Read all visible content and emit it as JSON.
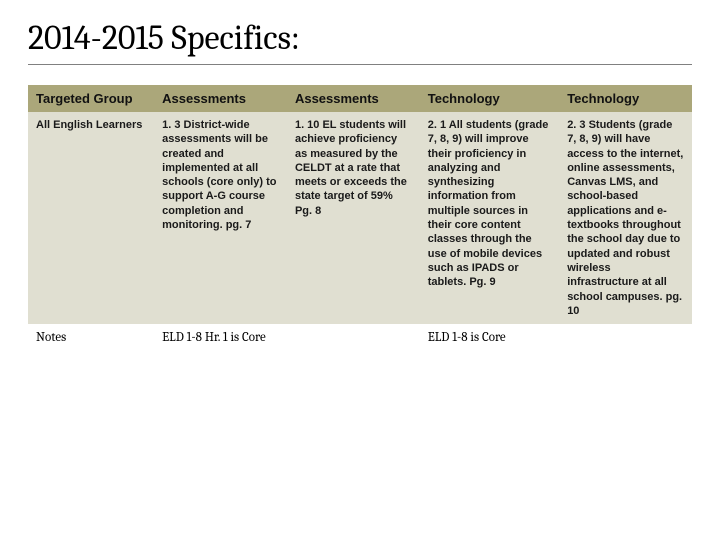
{
  "title": "2014-2015 Specifics:",
  "table": {
    "header_bg": "#aba77a",
    "row_bg_alt": "#e0dfd1",
    "row_bg": "#ffffff",
    "columns": [
      {
        "label": "Targeted Group",
        "width": "19%"
      },
      {
        "label": "Assessments",
        "width": "20%"
      },
      {
        "label": "Assessments",
        "width": "20%"
      },
      {
        "label": "Technology",
        "width": "21%"
      },
      {
        "label": "Technology",
        "width": "20%"
      }
    ],
    "rows": [
      {
        "bg": "#e0dfd1",
        "cells": [
          "All English Learners",
          "1. 3 District-wide assessments will be created and implemented at all schools (core only) to support A-G course completion and monitoring. pg. 7",
          "1. 10 EL students will achieve proficiency as measured by the CELDT at a rate that meets or exceeds the state target of 59% Pg. 8",
          "2. 1 All students (grade 7, 8, 9) will improve their proficiency in analyzing and synthesizing information from multiple sources in their core content classes through the use of mobile devices such as IPADS or tablets. Pg. 9",
          "2. 3 Students (grade 7, 8, 9) will have access to the internet, online assessments, Canvas LMS, and school-based applications and e-textbooks throughout the school day due to updated and robust wireless infrastructure at all school campuses. pg. 10"
        ]
      },
      {
        "bg": "#ffffff",
        "notes": true,
        "cells": [
          "Notes",
          "ELD 1-8  Hr. 1 is Core",
          "",
          "ELD 1-8 is Core",
          ""
        ]
      }
    ]
  },
  "styling": {
    "title_fontsize": 34,
    "title_color": "#000000",
    "title_border_color": "#808080",
    "header_fontsize": 13,
    "cell_fontsize": 11,
    "notes_fontsize": 13,
    "text_color": "#1a1a1a",
    "background": "#ffffff"
  }
}
